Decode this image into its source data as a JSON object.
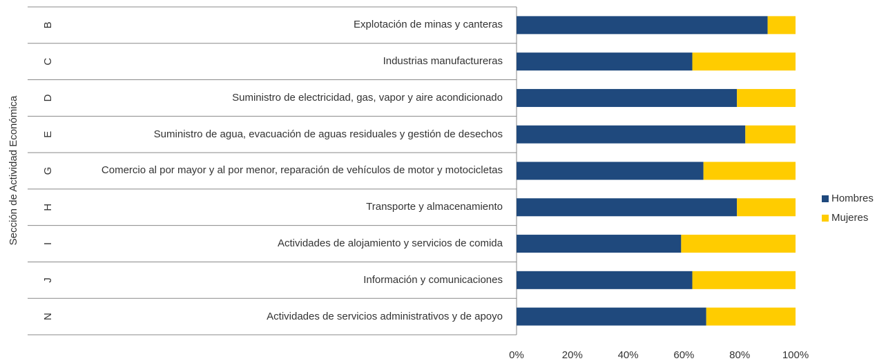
{
  "chart_data": {
    "type": "stacked-barh",
    "y_axis_label": "Sección de Actividad Económica",
    "groups": [
      "B",
      "C",
      "D",
      "E",
      "G",
      "H",
      "I",
      "J",
      "N"
    ],
    "categories": [
      "Explotación de minas y canteras",
      "Industrias manufactureras",
      "Suministro de electricidad, gas, vapor y aire acondicionado",
      "Suministro de agua, evacuación de aguas residuales y gestión de desechos",
      "Comercio al por mayor y al por menor, reparación de vehículos de motor y motocicletas",
      "Transporte y almacenamiento",
      "Actividades de alojamiento y servicios de comida",
      "Información y comunicaciones",
      "Actividades de servicios administrativos y de apoyo"
    ],
    "series": [
      {
        "name": "Hombres",
        "color": "#1f497d",
        "values": [
          90,
          63,
          79,
          82,
          67,
          79,
          59,
          63,
          68
        ]
      },
      {
        "name": "Mujeres",
        "color": "#ffcc00",
        "values": [
          10,
          37,
          21,
          18,
          33,
          21,
          41,
          37,
          32
        ]
      }
    ],
    "xlim": [
      0,
      100
    ],
    "xticks": [
      {
        "value": 0,
        "label": "0%"
      },
      {
        "value": 20,
        "label": "20%"
      },
      {
        "value": 40,
        "label": "40%"
      },
      {
        "value": 60,
        "label": "60%"
      },
      {
        "value": 80,
        "label": "80%"
      },
      {
        "value": 100,
        "label": "100%"
      }
    ],
    "legend": "right"
  }
}
